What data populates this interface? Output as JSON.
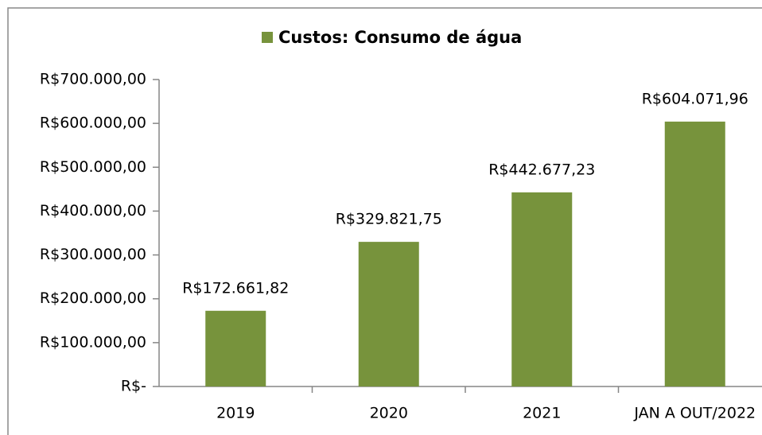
{
  "chart_data": {
    "type": "bar",
    "categories": [
      "2019",
      "2020",
      "2021",
      "JAN A OUT/2022"
    ],
    "series": [
      {
        "name": "Custos: Consumo de água",
        "color": "#77933c",
        "values": [
          172661.82,
          329821.75,
          442677.23,
          604071.96
        ],
        "value_labels": [
          "R$172.661,82",
          "R$329.821,75",
          "R$442.677,23",
          "R$604.071,96"
        ]
      }
    ],
    "ylim": [
      0,
      700000
    ],
    "yticks": [
      {
        "value": 0,
        "label": "R$-"
      },
      {
        "value": 100000,
        "label": "R$100.000,00"
      },
      {
        "value": 200000,
        "label": "R$200.000,00"
      },
      {
        "value": 300000,
        "label": "R$300.000,00"
      },
      {
        "value": 400000,
        "label": "R$400.000,00"
      },
      {
        "value": 500000,
        "label": "R$500.000,00"
      },
      {
        "value": 600000,
        "label": "R$600.000,00"
      },
      {
        "value": 700000,
        "label": "R$700.000,00"
      }
    ],
    "legend": "top"
  }
}
